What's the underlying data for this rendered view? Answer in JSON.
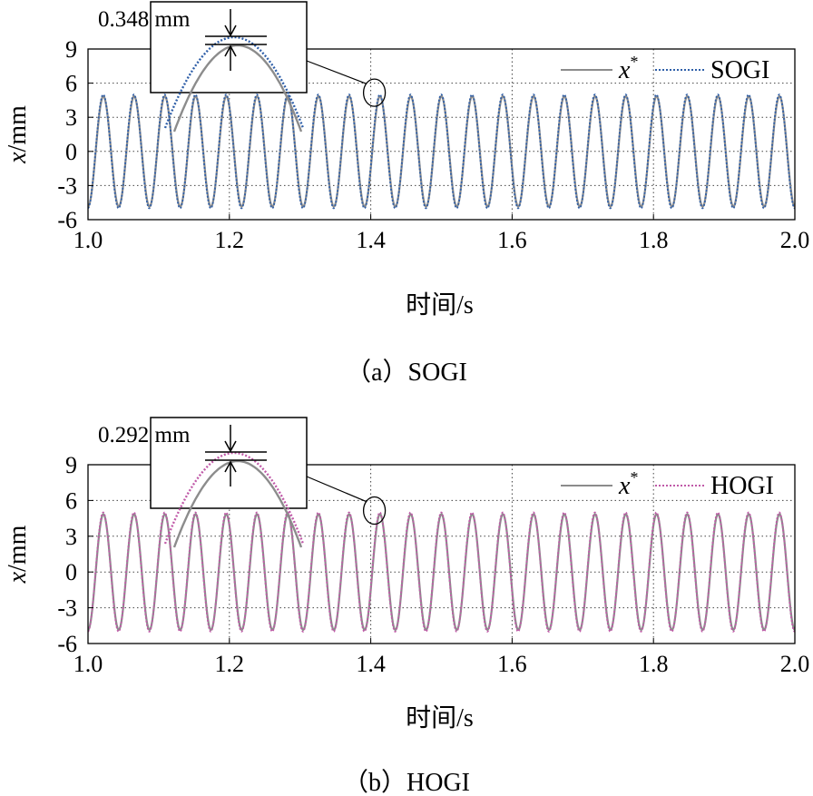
{
  "chart_data": [
    {
      "type": "line",
      "caption": "（a）SOGI",
      "xlabel": "时间/s",
      "ylabel_var": "x",
      "ylabel_unit": "/mm",
      "xlim": [
        1.0,
        2.0
      ],
      "ylim": [
        -6,
        9
      ],
      "xticks": [
        "1.0",
        "1.2",
        "1.4",
        "1.6",
        "1.8",
        "2.0"
      ],
      "xtick_values": [
        1.0,
        1.2,
        1.4,
        1.6,
        1.8,
        2.0
      ],
      "yticks": [
        "9",
        "6",
        "3",
        "0",
        "-3",
        "-6"
      ],
      "ytick_values": [
        9,
        6,
        3,
        0,
        -3,
        -6
      ],
      "grid": true,
      "legend_position": "top-right",
      "series": [
        {
          "name": "x",
          "name_sup": "*",
          "style": "solid",
          "color": "#8c8c8c",
          "amplitude": 4.85,
          "frequency_hz": 23,
          "phase_deg": -90
        },
        {
          "name": "SOGI",
          "style": "dotted",
          "color": "#2f5fa8",
          "amplitude": 5.0,
          "frequency_hz": 23,
          "phase_deg": -88
        }
      ],
      "annotation": {
        "text": "0.348 mm",
        "x": 1.4,
        "y": 5.0
      }
    },
    {
      "type": "line",
      "caption": "（b）HOGI",
      "xlabel": "时间/s",
      "ylabel_var": "x",
      "ylabel_unit": "/mm",
      "xlim": [
        1.0,
        2.0
      ],
      "ylim": [
        -6,
        9
      ],
      "xticks": [
        "1.0",
        "1.2",
        "1.4",
        "1.6",
        "1.8",
        "2.0"
      ],
      "xtick_values": [
        1.0,
        1.2,
        1.4,
        1.6,
        1.8,
        2.0
      ],
      "yticks": [
        "9",
        "6",
        "3",
        "0",
        "-3",
        "-6"
      ],
      "ytick_values": [
        9,
        6,
        3,
        0,
        -3,
        -6
      ],
      "grid": true,
      "legend_position": "top-right",
      "series": [
        {
          "name": "x",
          "name_sup": "*",
          "style": "solid",
          "color": "#8c8c8c",
          "amplitude": 4.85,
          "frequency_hz": 23,
          "phase_deg": -90
        },
        {
          "name": "HOGI",
          "style": "dotted",
          "color": "#c05aa8",
          "amplitude": 5.0,
          "frequency_hz": 23,
          "phase_deg": -88
        }
      ],
      "annotation": {
        "text": "0.292 mm",
        "x": 1.4,
        "y": 5.0
      }
    }
  ]
}
